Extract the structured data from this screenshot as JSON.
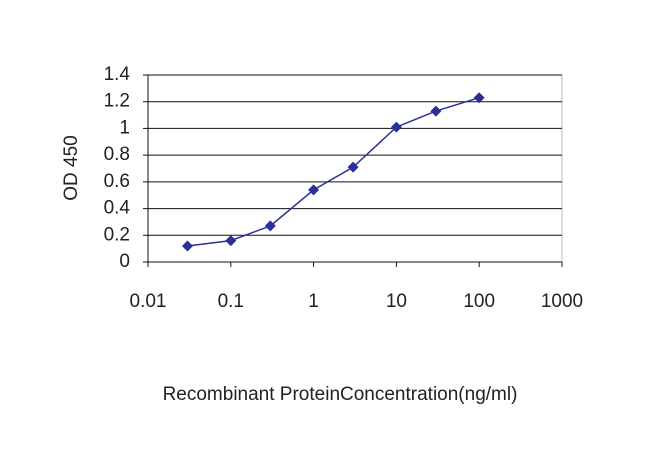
{
  "chart_data": {
    "type": "line",
    "x_label": "Recombinant ProteinConcentration(ng/ml)",
    "y_label": "OD 450",
    "x": [
      0.03,
      0.1,
      0.3,
      1,
      3,
      10,
      30,
      100
    ],
    "series": [
      {
        "color": "#2a2f9a",
        "values": [
          0.12,
          0.16,
          0.27,
          0.54,
          0.71,
          1.01,
          1.13,
          1.23
        ]
      }
    ],
    "xlog": true,
    "xlim": [
      0.01,
      1000
    ],
    "xticks": [
      0.01,
      0.1,
      1,
      10,
      100,
      1000
    ],
    "ylim": [
      0,
      1.4
    ],
    "yticks": [
      0,
      0.2,
      0.4,
      0.6,
      0.8,
      1,
      1.2,
      1.4
    ],
    "grid": true
  }
}
